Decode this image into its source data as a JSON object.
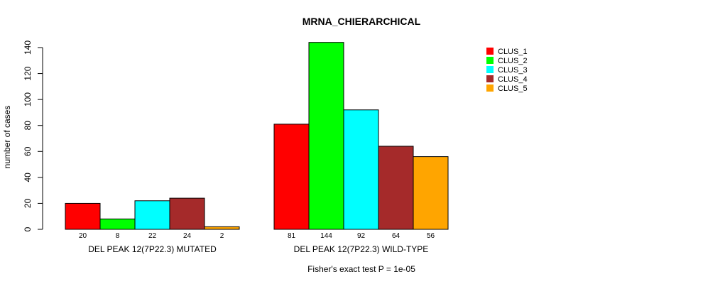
{
  "chart_data": {
    "type": "bar",
    "title": "MRNA_CHIERARCHICAL",
    "ylabel": "number of cases",
    "xlabel": "",
    "ylim": [
      0,
      140
    ],
    "yticks": [
      0,
      20,
      40,
      60,
      80,
      100,
      120,
      140
    ],
    "groups": [
      "DEL PEAK 12(7P22.3) MUTATED",
      "DEL PEAK 12(7P22.3) WILD-TYPE"
    ],
    "series": [
      {
        "name": "CLUS_1",
        "color": "#ff0000",
        "values": [
          20,
          81
        ]
      },
      {
        "name": "CLUS_2",
        "color": "#00ff00",
        "values": [
          8,
          144
        ]
      },
      {
        "name": "CLUS_3",
        "color": "#00ffff",
        "values": [
          22,
          92
        ]
      },
      {
        "name": "CLUS_4",
        "color": "#a52a2a",
        "values": [
          24,
          64
        ]
      },
      {
        "name": "CLUS_5",
        "color": "#ffa500",
        "values": [
          2,
          56
        ]
      }
    ],
    "legend_position": "top-right",
    "footnote": "Fisher's exact test P = 1e-05"
  }
}
